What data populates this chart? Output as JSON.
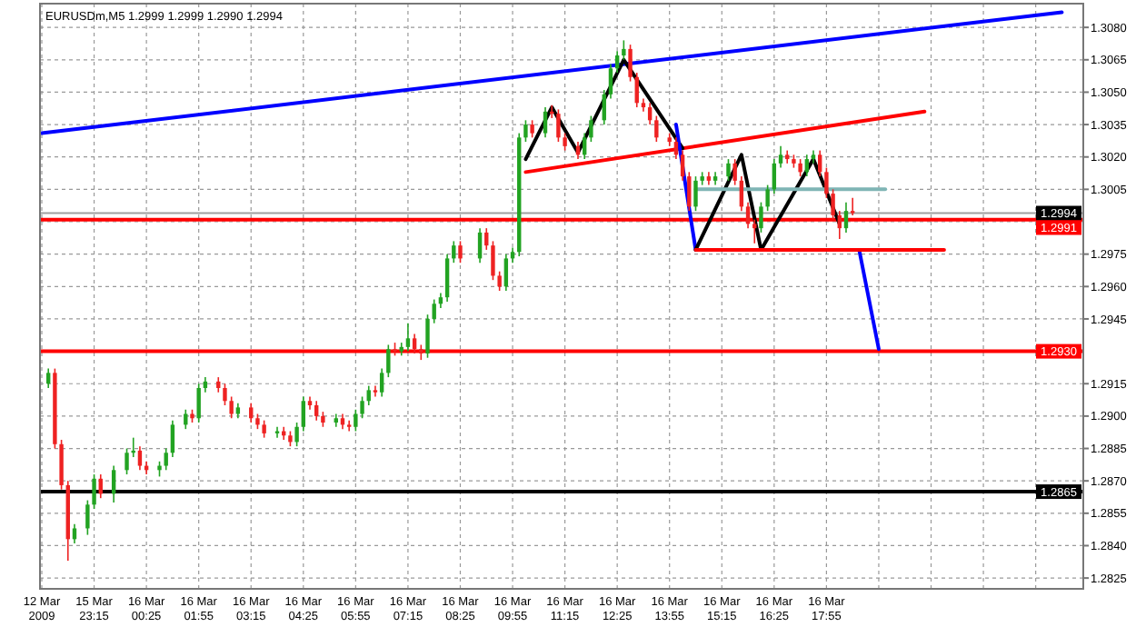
{
  "chart_data": {
    "type": "candlestick",
    "title": "EURUSDm,M5  1.2999 1.2999 1.2990 1.2994",
    "categories": [
      "12 Mar 2009",
      null,
      null,
      null,
      null,
      null,
      null,
      null,
      "15 Mar 23:15",
      null,
      null,
      null,
      null,
      null,
      null,
      null,
      "16 Mar 00:25",
      null,
      null,
      null,
      null,
      null,
      null,
      null,
      "16 Mar 01:55",
      null,
      null,
      null,
      null,
      null,
      null,
      null,
      "16 Mar 03:15",
      null,
      null,
      null,
      null,
      null,
      null,
      null,
      "16 Mar 04:25",
      null,
      null,
      null,
      null,
      null,
      null,
      null,
      "16 Mar 05:55",
      null,
      null,
      null,
      null,
      null,
      null,
      null,
      "16 Mar 07:15",
      null,
      null,
      null,
      null,
      null,
      null,
      null,
      "16 Mar 08:25",
      null,
      null,
      null,
      null,
      null,
      null,
      null,
      "16 Mar 09:55",
      null,
      null,
      null,
      null,
      null,
      null,
      null,
      "16 Mar 11:15",
      null,
      null,
      null,
      null,
      null,
      null,
      null,
      "16 Mar 12:25",
      null,
      null,
      null,
      null,
      null,
      null,
      null,
      "16 Mar 13:55",
      null,
      null,
      null,
      null,
      null,
      null,
      null,
      "16 Mar 15:15",
      null,
      null,
      null,
      null,
      null,
      null,
      null,
      "16 Mar 16:25",
      null,
      null,
      null,
      null,
      null,
      null,
      null,
      "16 Mar 17:55",
      null,
      null,
      null,
      null,
      null,
      null,
      null,
      null,
      null,
      null,
      null,
      null,
      null,
      null,
      null,
      null,
      null,
      null,
      null,
      null,
      null,
      null,
      null,
      null,
      null,
      null,
      null,
      null,
      null,
      null,
      null,
      null,
      null,
      null,
      null,
      null,
      null,
      null,
      null
    ],
    "ohlc": [
      null,
      [
        1.2915,
        1.2922,
        1.2913,
        1.292
      ],
      [
        1.292,
        1.2922,
        1.2885,
        1.2887
      ],
      [
        1.2887,
        1.2889,
        1.2866,
        1.2868
      ],
      [
        1.2868,
        1.287,
        1.2833,
        1.2843
      ],
      [
        1.2843,
        1.285,
        1.2841,
        1.2848
      ],
      null,
      [
        1.2848,
        1.2861,
        1.2845,
        1.2859
      ],
      [
        1.2859,
        1.2873,
        1.2857,
        1.2871
      ],
      [
        1.2871,
        1.2873,
        1.2862,
        1.2864
      ],
      null,
      [
        1.2864,
        1.2877,
        1.286,
        1.2875
      ],
      null,
      [
        1.2875,
        1.2885,
        1.2873,
        1.2883
      ],
      [
        1.2883,
        1.289,
        1.2881,
        1.2884
      ],
      [
        1.2884,
        1.2886,
        1.2875,
        1.2877
      ],
      [
        1.2877,
        1.2879,
        1.2873,
        1.2875
      ],
      null,
      [
        1.2875,
        1.2879,
        1.2872,
        1.2877
      ],
      [
        1.2877,
        1.2885,
        1.2875,
        1.2883
      ],
      [
        1.2883,
        1.2898,
        1.2881,
        1.2896
      ],
      null,
      [
        1.2896,
        1.2903,
        1.2894,
        1.2901
      ],
      [
        1.2901,
        1.2903,
        1.2897,
        1.2899
      ],
      [
        1.2899,
        1.2915,
        1.2897,
        1.2913
      ],
      [
        1.2913,
        1.2918,
        1.2911,
        1.2916
      ],
      null,
      [
        1.2916,
        1.2918,
        1.2911,
        1.2913
      ],
      [
        1.2913,
        1.2915,
        1.2905,
        1.2907
      ],
      [
        1.2907,
        1.2909,
        1.2899,
        1.2901
      ],
      [
        1.2901,
        1.2906,
        1.2899,
        1.2904
      ],
      null,
      [
        1.2904,
        1.2906,
        1.2897,
        1.2899
      ],
      [
        1.2899,
        1.2901,
        1.2894,
        1.2896
      ],
      [
        1.2896,
        1.2898,
        1.289,
        1.2892
      ],
      null,
      [
        1.2892,
        1.2895,
        1.289,
        1.2893
      ],
      [
        1.2893,
        1.2895,
        1.2889,
        1.2891
      ],
      [
        1.2891,
        1.2893,
        1.2886,
        1.2888
      ],
      [
        1.2888,
        1.2897,
        1.2886,
        1.2895
      ],
      [
        1.2895,
        1.2909,
        1.2893,
        1.2907
      ],
      [
        1.2907,
        1.2909,
        1.2903,
        1.2905
      ],
      [
        1.2905,
        1.2907,
        1.2898,
        1.29
      ],
      [
        1.29,
        1.2902,
        1.2895,
        1.2897
      ],
      null,
      [
        1.2897,
        1.2901,
        1.2895,
        1.2899
      ],
      [
        1.2899,
        1.2901,
        1.2894,
        1.2896
      ],
      [
        1.2896,
        1.2898,
        1.2893,
        1.2895
      ],
      [
        1.2895,
        1.2903,
        1.2893,
        1.2901
      ],
      [
        1.2901,
        1.2909,
        1.2899,
        1.2907
      ],
      [
        1.2907,
        1.2914,
        1.2905,
        1.2912
      ],
      [
        1.2912,
        1.2914,
        1.2909,
        1.2911
      ],
      [
        1.2911,
        1.2922,
        1.2909,
        1.292
      ],
      [
        1.292,
        1.2933,
        1.2918,
        1.2931
      ],
      [
        1.2931,
        1.2934,
        1.2928,
        1.293
      ],
      [
        1.293,
        1.2934,
        1.2928,
        1.2932
      ],
      [
        1.2932,
        1.2943,
        1.293,
        1.2936
      ],
      [
        1.2936,
        1.2938,
        1.2929,
        1.2931
      ],
      [
        1.2931,
        1.2933,
        1.2926,
        1.2929
      ],
      [
        1.2929,
        1.2947,
        1.2927,
        1.2945
      ],
      [
        1.2945,
        1.2954,
        1.2943,
        1.2952
      ],
      [
        1.2952,
        1.2957,
        1.295,
        1.2955
      ],
      [
        1.2955,
        1.2975,
        1.2953,
        1.2973
      ],
      [
        1.2973,
        1.2981,
        1.2971,
        1.2979
      ],
      [
        1.2979,
        1.2981,
        1.2971,
        1.2973
      ],
      null,
      null,
      [
        1.2973,
        1.2987,
        1.2971,
        1.2985
      ],
      [
        1.2985,
        1.2987,
        1.2977,
        1.2979
      ],
      [
        1.2979,
        1.2981,
        1.2963,
        1.2965
      ],
      [
        1.2965,
        1.2967,
        1.2958,
        1.296
      ],
      [
        1.296,
        1.2975,
        1.2958,
        1.2973
      ],
      [
        1.2973,
        1.2978,
        1.2971,
        1.2976
      ],
      [
        1.2976,
        1.3031,
        1.2974,
        1.3029
      ],
      [
        1.3029,
        1.3037,
        1.3027,
        1.3035
      ],
      [
        1.3035,
        1.3037,
        1.3029,
        1.3031
      ],
      null,
      [
        1.3031,
        1.3043,
        1.3029,
        1.3041
      ],
      [
        1.3041,
        1.3044,
        1.3038,
        1.304
      ],
      [
        1.304,
        1.3042,
        1.3027,
        1.3029
      ],
      [
        1.3029,
        1.3031,
        1.3023,
        1.3025
      ],
      null,
      [
        1.3025,
        1.3027,
        1.3019,
        1.3021
      ],
      [
        1.3021,
        1.3031,
        1.3019,
        1.3029
      ],
      [
        1.3029,
        1.3039,
        1.3027,
        1.3037
      ],
      null,
      [
        1.3037,
        1.3051,
        1.3035,
        1.3049
      ],
      [
        1.3049,
        1.3063,
        1.3047,
        1.3061
      ],
      [
        1.3061,
        1.3069,
        1.3059,
        1.3067
      ],
      [
        1.3067,
        1.3074,
        1.3065,
        1.307
      ],
      [
        1.307,
        1.3072,
        1.3055,
        1.3057
      ],
      [
        1.3057,
        1.3059,
        1.3043,
        1.3045
      ],
      [
        1.3045,
        1.3047,
        1.3041,
        1.3043
      ],
      [
        1.3043,
        1.3045,
        1.3035,
        1.3037
      ],
      [
        1.3037,
        1.3039,
        1.3027,
        1.3029
      ],
      null,
      [
        1.3029,
        1.3031,
        1.3025,
        1.3027
      ],
      [
        1.3027,
        1.3029,
        1.3019,
        1.3021
      ],
      [
        1.3021,
        1.3023,
        1.3009,
        1.3011
      ],
      [
        1.3011,
        1.3013,
        1.2995,
        1.2997
      ],
      [
        1.2997,
        1.3011,
        1.2995,
        1.3009
      ],
      [
        1.3009,
        1.3013,
        1.3007,
        1.3011
      ],
      [
        1.3011,
        1.3013,
        1.3007,
        1.3009
      ],
      [
        1.3009,
        1.3013,
        1.3007,
        1.3011
      ],
      null,
      [
        1.3011,
        1.3019,
        1.3009,
        1.3017
      ],
      [
        1.3017,
        1.3019,
        1.3007,
        1.3009
      ],
      [
        1.3009,
        1.3011,
        1.2995,
        1.2997
      ],
      [
        1.2997,
        1.2999,
        1.2987,
        1.2989
      ],
      [
        1.2989,
        1.2991,
        1.298,
        1.2987
      ],
      [
        1.2987,
        1.2999,
        1.2985,
        1.2997
      ],
      [
        1.2997,
        1.3007,
        1.2995,
        1.3005
      ],
      [
        1.3005,
        1.3019,
        1.3003,
        1.3017
      ],
      [
        1.3017,
        1.3025,
        1.3015,
        1.3021
      ],
      [
        1.3021,
        1.3023,
        1.3017,
        1.3019
      ],
      [
        1.3019,
        1.3021,
        1.3015,
        1.3017
      ],
      [
        1.3017,
        1.3019,
        1.3011,
        1.3013
      ],
      [
        1.3013,
        1.3021,
        1.3011,
        1.3019
      ],
      [
        1.3019,
        1.3023,
        1.3017,
        1.3021
      ],
      [
        1.3021,
        1.3023,
        1.3011,
        1.3013
      ],
      [
        1.3013,
        1.3015,
        1.3001,
        1.3003
      ],
      [
        1.3003,
        1.3005,
        1.2991,
        1.2993
      ],
      [
        1.2993,
        1.2995,
        1.2982,
        1.2987
      ],
      [
        1.2987,
        1.2999,
        1.2985,
        1.2995
      ],
      [
        1.2995,
        1.3001,
        1.2993,
        1.2994
      ],
      null,
      null,
      null,
      null,
      null,
      null,
      null,
      null,
      null,
      null,
      null,
      null,
      null,
      null,
      null,
      null,
      null,
      null,
      null,
      null,
      null,
      null,
      null,
      null,
      null,
      null,
      null,
      null,
      null,
      null,
      null,
      null,
      null,
      null,
      null
    ],
    "series": [
      {
        "type": "line",
        "color": "#0000ff",
        "values": [
          1.3031,
          null,
          null,
          null,
          null,
          null,
          null,
          null,
          null,
          null,
          null,
          null,
          null,
          null,
          null,
          null,
          null,
          null,
          null,
          null,
          null,
          null,
          null,
          null,
          null,
          null,
          null,
          null,
          null,
          null,
          null,
          null,
          null,
          null,
          null,
          null,
          null,
          null,
          null,
          null,
          null,
          null,
          null,
          null,
          null,
          null,
          null,
          null,
          null,
          null,
          null,
          null,
          null,
          null,
          null,
          null,
          null,
          null,
          null,
          null,
          null,
          null,
          null,
          null,
          null,
          null,
          null,
          null,
          null,
          null,
          null,
          null,
          null,
          null,
          null,
          null,
          null,
          null,
          null,
          null,
          null,
          null,
          null,
          null,
          null,
          null,
          null,
          null,
          null,
          null,
          null,
          null,
          null,
          null,
          null,
          null,
          null,
          null,
          null,
          null,
          null,
          null,
          null,
          null,
          null,
          null,
          null,
          null,
          null,
          null,
          null,
          null,
          null,
          null,
          null,
          null,
          null,
          null,
          null,
          null,
          null,
          null,
          null,
          null,
          null,
          null,
          null,
          null,
          null,
          null,
          null,
          null,
          null,
          null,
          null,
          null,
          null,
          null,
          null,
          null,
          null,
          null,
          null,
          null,
          null,
          null,
          null,
          null,
          null,
          null,
          null,
          null,
          null,
          null,
          null,
          null,
          1.3087,
          null,
          null,
          null
        ]
      },
      {
        "type": "line",
        "color": "#ff0000",
        "values": [
          null,
          null,
          null,
          null,
          null,
          null,
          null,
          null,
          null,
          null,
          null,
          null,
          null,
          null,
          null,
          null,
          null,
          null,
          null,
          null,
          null,
          null,
          null,
          null,
          null,
          null,
          null,
          null,
          null,
          null,
          null,
          null,
          null,
          null,
          null,
          null,
          null,
          null,
          null,
          null,
          null,
          null,
          null,
          null,
          null,
          null,
          null,
          null,
          null,
          null,
          null,
          null,
          null,
          null,
          null,
          null,
          null,
          null,
          null,
          null,
          null,
          null,
          null,
          null,
          null,
          null,
          null,
          null,
          null,
          null,
          null,
          null,
          null,
          null,
          1.3013,
          null,
          null,
          null,
          null,
          null,
          null,
          null,
          null,
          null,
          null,
          null,
          null,
          null,
          null,
          null,
          null,
          null,
          null,
          null,
          null,
          null,
          null,
          null,
          null,
          null,
          null,
          null,
          null,
          null,
          null,
          null,
          null,
          null,
          null,
          null,
          null,
          null,
          null,
          null,
          null,
          null,
          null,
          null,
          null,
          null,
          null,
          null,
          null,
          null,
          null,
          null,
          null,
          null,
          null,
          null,
          null,
          null,
          null,
          null,
          null,
          1.3041,
          null,
          null,
          null,
          null,
          null,
          null,
          null,
          null,
          null,
          null,
          null,
          null,
          null,
          null,
          null,
          null,
          null,
          null,
          null,
          null,
          null,
          null,
          null,
          null
        ]
      },
      {
        "type": "line",
        "color": "#000000",
        "values": [
          null,
          null,
          null,
          null,
          null,
          null,
          null,
          null,
          null,
          null,
          null,
          null,
          null,
          null,
          null,
          null,
          null,
          null,
          null,
          null,
          null,
          null,
          null,
          null,
          null,
          null,
          null,
          null,
          null,
          null,
          null,
          null,
          null,
          null,
          null,
          null,
          null,
          null,
          null,
          null,
          null,
          null,
          null,
          null,
          null,
          null,
          null,
          null,
          null,
          null,
          null,
          null,
          null,
          null,
          null,
          null,
          null,
          null,
          null,
          null,
          null,
          null,
          null,
          null,
          null,
          null,
          null,
          null,
          null,
          null,
          null,
          null,
          null,
          null,
          1.3019,
          null,
          null,
          null,
          1.3043,
          null,
          null,
          null,
          1.3022,
          null,
          null,
          null,
          null,
          null,
          null,
          1.3065,
          null,
          null,
          null,
          null,
          null,
          null,
          null,
          null,
          1.3024,
          null,
          null,
          null,
          null,
          null,
          null,
          null,
          null,
          null,
          null,
          null,
          null,
          null,
          null,
          null,
          null,
          null,
          null,
          null,
          null,
          null,
          null,
          null,
          null,
          null,
          null,
          null,
          null,
          null,
          null,
          null,
          null,
          null,
          null,
          null,
          null,
          null,
          null,
          null,
          null,
          null,
          null,
          null,
          null,
          null,
          null,
          null,
          null,
          null,
          null,
          null,
          null,
          null,
          null,
          null,
          null,
          null,
          null,
          null,
          null,
          null
        ]
      },
      {
        "type": "line",
        "color": "#0000ff",
        "values": [
          null,
          null,
          null,
          null,
          null,
          null,
          null,
          null,
          null,
          null,
          null,
          null,
          null,
          null,
          null,
          null,
          null,
          null,
          null,
          null,
          null,
          null,
          null,
          null,
          null,
          null,
          null,
          null,
          null,
          null,
          null,
          null,
          null,
          null,
          null,
          null,
          null,
          null,
          null,
          null,
          null,
          null,
          null,
          null,
          null,
          null,
          null,
          null,
          null,
          null,
          null,
          null,
          null,
          null,
          null,
          null,
          null,
          null,
          null,
          null,
          null,
          null,
          null,
          null,
          null,
          null,
          null,
          null,
          null,
          null,
          null,
          null,
          null,
          null,
          null,
          null,
          null,
          null,
          null,
          null,
          null,
          null,
          null,
          null,
          null,
          null,
          null,
          null,
          null,
          null,
          null,
          null,
          null,
          null,
          null,
          null,
          null,
          1.3035,
          null,
          null,
          1.2977,
          null,
          null,
          null,
          null,
          null,
          null,
          null,
          null,
          null,
          null,
          null,
          null,
          null,
          null,
          null,
          null,
          null,
          null,
          null,
          null,
          null,
          null,
          null,
          null,
          null,
          null,
          null,
          null,
          null,
          null,
          null,
          null,
          null,
          null,
          null,
          null,
          null,
          null,
          null,
          null,
          null,
          null,
          null,
          null,
          null,
          null,
          null,
          null,
          null,
          null,
          null,
          null,
          null,
          null,
          null,
          null,
          null,
          null,
          null
        ]
      },
      {
        "type": "line",
        "color": "#000000",
        "values": [
          null,
          null,
          null,
          null,
          null,
          null,
          null,
          null,
          null,
          null,
          null,
          null,
          null,
          null,
          null,
          null,
          null,
          null,
          null,
          null,
          null,
          null,
          null,
          null,
          null,
          null,
          null,
          null,
          null,
          null,
          null,
          null,
          null,
          null,
          null,
          null,
          null,
          null,
          null,
          null,
          null,
          null,
          null,
          null,
          null,
          null,
          null,
          null,
          null,
          null,
          null,
          null,
          null,
          null,
          null,
          null,
          null,
          null,
          null,
          null,
          null,
          null,
          null,
          null,
          null,
          null,
          null,
          null,
          null,
          null,
          null,
          null,
          null,
          null,
          null,
          null,
          null,
          null,
          null,
          null,
          null,
          null,
          null,
          null,
          null,
          null,
          null,
          null,
          null,
          null,
          null,
          null,
          null,
          null,
          null,
          null,
          null,
          null,
          null,
          null,
          1.2977,
          null,
          null,
          null,
          null,
          null,
          null,
          1.3021,
          null,
          null,
          1.2977,
          null,
          null,
          null,
          null,
          null,
          null,
          null,
          1.3019,
          null,
          null,
          null,
          1.2989,
          null,
          null,
          null,
          null,
          null,
          null,
          null,
          null,
          null,
          null,
          null,
          null,
          null,
          null,
          null,
          null,
          null,
          null,
          null,
          null,
          null,
          null,
          null,
          null,
          null,
          null,
          null,
          null,
          null,
          null,
          null,
          null,
          null,
          null,
          null,
          null,
          null
        ]
      },
      {
        "type": "line",
        "color": "#0000ff",
        "values": [
          null,
          null,
          null,
          null,
          null,
          null,
          null,
          null,
          null,
          null,
          null,
          null,
          null,
          null,
          null,
          null,
          null,
          null,
          null,
          null,
          null,
          null,
          null,
          null,
          null,
          null,
          null,
          null,
          null,
          null,
          null,
          null,
          null,
          null,
          null,
          null,
          null,
          null,
          null,
          null,
          null,
          null,
          null,
          null,
          null,
          null,
          null,
          null,
          null,
          null,
          null,
          null,
          null,
          null,
          null,
          null,
          null,
          null,
          null,
          null,
          null,
          null,
          null,
          null,
          null,
          null,
          null,
          null,
          null,
          null,
          null,
          null,
          null,
          null,
          null,
          null,
          null,
          null,
          null,
          null,
          null,
          null,
          null,
          null,
          null,
          null,
          null,
          null,
          null,
          null,
          null,
          null,
          null,
          null,
          null,
          null,
          null,
          null,
          null,
          null,
          null,
          null,
          null,
          null,
          null,
          null,
          null,
          null,
          null,
          null,
          null,
          null,
          null,
          null,
          null,
          null,
          null,
          null,
          null,
          null,
          null,
          null,
          null,
          null,
          null,
          1.2977,
          null,
          null,
          1.2931,
          null,
          null,
          null,
          null,
          null,
          null,
          null,
          null,
          null,
          null,
          null,
          null,
          null,
          null,
          null,
          null,
          null,
          null,
          null,
          null,
          null,
          null,
          null,
          null,
          null,
          null,
          null,
          null,
          null,
          null,
          null
        ]
      },
      {
        "type": "line",
        "color": "#ff0000",
        "values": [
          null,
          null,
          null,
          null,
          null,
          null,
          null,
          null,
          null,
          null,
          null,
          null,
          null,
          null,
          null,
          null,
          null,
          null,
          null,
          null,
          null,
          null,
          null,
          null,
          null,
          null,
          null,
          null,
          null,
          null,
          null,
          null,
          null,
          null,
          null,
          null,
          null,
          null,
          null,
          null,
          null,
          null,
          null,
          null,
          null,
          null,
          null,
          null,
          null,
          null,
          null,
          null,
          null,
          null,
          null,
          null,
          null,
          null,
          null,
          null,
          null,
          null,
          null,
          null,
          null,
          null,
          null,
          null,
          null,
          null,
          null,
          null,
          null,
          null,
          null,
          null,
          null,
          null,
          null,
          null,
          null,
          null,
          null,
          null,
          null,
          null,
          null,
          null,
          null,
          null,
          null,
          null,
          null,
          null,
          null,
          null,
          null,
          null,
          null,
          null,
          1.2977,
          null,
          null,
          null,
          null,
          null,
          null,
          null,
          null,
          null,
          null,
          null,
          null,
          null,
          null,
          null,
          null,
          null,
          null,
          null,
          null,
          null,
          null,
          null,
          null,
          null,
          null,
          null,
          null,
          null,
          null,
          null,
          null,
          null,
          null,
          null,
          null,
          null,
          1.2977,
          null,
          null,
          null,
          null,
          null,
          null,
          null,
          null,
          null,
          null,
          null,
          null,
          null,
          null,
          null,
          null,
          null,
          null,
          null,
          null,
          null
        ]
      },
      {
        "type": "line",
        "color": "#7fb5b5",
        "values": [
          null,
          null,
          null,
          null,
          null,
          null,
          null,
          null,
          null,
          null,
          null,
          null,
          null,
          null,
          null,
          null,
          null,
          null,
          null,
          null,
          null,
          null,
          null,
          null,
          null,
          null,
          null,
          null,
          null,
          null,
          null,
          null,
          null,
          null,
          null,
          null,
          null,
          null,
          null,
          null,
          null,
          null,
          null,
          null,
          null,
          null,
          null,
          null,
          null,
          null,
          null,
          null,
          null,
          null,
          null,
          null,
          null,
          null,
          null,
          null,
          null,
          null,
          null,
          null,
          null,
          null,
          null,
          null,
          null,
          null,
          null,
          null,
          null,
          null,
          null,
          null,
          null,
          null,
          null,
          null,
          null,
          null,
          null,
          null,
          null,
          null,
          null,
          null,
          null,
          null,
          null,
          null,
          null,
          null,
          null,
          null,
          null,
          null,
          null,
          null,
          1.3005,
          null,
          null,
          null,
          null,
          null,
          null,
          null,
          null,
          null,
          null,
          null,
          null,
          null,
          null,
          null,
          null,
          null,
          null,
          null,
          null,
          null,
          null,
          null,
          null,
          null,
          null,
          null,
          null,
          1.3005,
          null,
          null,
          null,
          null,
          null,
          null,
          null,
          null,
          null,
          null,
          null,
          null,
          null,
          null,
          null,
          null,
          null,
          null,
          null,
          null,
          null,
          null,
          null,
          null,
          null,
          null,
          null,
          null,
          null,
          null
        ]
      }
    ],
    "ref_lines": [
      {
        "axis": "y",
        "value": 1.2994,
        "label": "1.2994",
        "color": "#a0a0a0"
      },
      {
        "axis": "y",
        "value": 1.2991,
        "label": "1.2991",
        "color": "#ff0000"
      },
      {
        "axis": "y",
        "value": 1.293,
        "label": "1.2930",
        "color": "#ff0000"
      },
      {
        "axis": "y",
        "value": 1.2865,
        "label": "1.2865",
        "color": "#000000"
      }
    ],
    "ylim": [
      1.282,
      1.3091
    ],
    "yticks": [
      {
        "value": 1.308,
        "label": "1.3080"
      },
      1.3065,
      {
        "value": 1.305,
        "label": "1.3050"
      },
      1.3035,
      {
        "value": 1.302,
        "label": "1.3020"
      },
      1.3005,
      {
        "value": 1.299,
        "label": null
      },
      1.2975,
      {
        "value": 1.296,
        "label": "1.2960"
      },
      1.2945,
      {
        "value": 1.293,
        "label": null
      },
      1.2915,
      {
        "value": 1.29,
        "label": "1.2900"
      },
      1.2885,
      {
        "value": 1.287,
        "label": "1.2870"
      },
      1.2855,
      {
        "value": 1.284,
        "label": "1.2840"
      },
      1.2825
    ],
    "grid": true
  }
}
